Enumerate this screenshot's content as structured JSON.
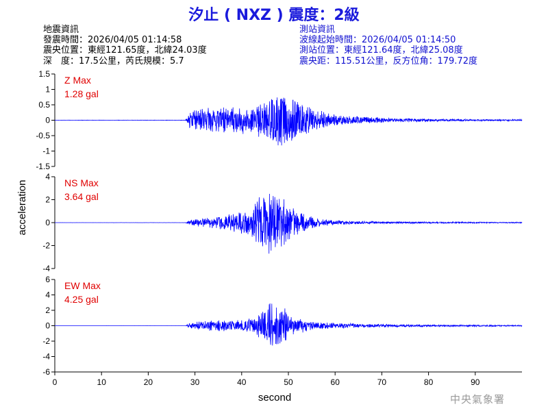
{
  "title": "汐止 ( NXZ ) 震度：2級",
  "quake_info": {
    "heading": "地震資訊",
    "origin_time": "發震時間：2026/04/05 01:14:58",
    "epicenter": "震央位置：東經121.65度，北緯24.03度",
    "depth_magnitude": "深　度：17.5公里，芮氏規模：5.7"
  },
  "station_info": {
    "heading": "測站資訊",
    "wave_start": "波線起始時間：2026/04/05 01:14:50",
    "station_location": "測站位置：東經121.64度，北緯25.08度",
    "distance_azimuth": "震央距：115.51公里，反方位角：179.72度"
  },
  "credit": "中央氣象署",
  "chart_data": {
    "type": "line",
    "xlabel": "second",
    "ylabel": "acceleration",
    "xlim": [
      0,
      100
    ],
    "xticks": [
      0,
      10,
      20,
      30,
      40,
      50,
      60,
      70,
      80,
      90
    ],
    "line_color": "#0000ff",
    "label_color": "#e00000",
    "panels": [
      {
        "component": "Z",
        "max_label": "Z Max",
        "max_value": "1.28 gal",
        "peak": 1.28,
        "ylim": [
          -1.5,
          1.5
        ],
        "yticks": [
          1.5,
          1,
          0.5,
          0,
          -0.5,
          -1,
          -1.5
        ],
        "ytick_labels": [
          "1.5",
          "1",
          "0.5",
          "0",
          "-0.5",
          "-1",
          "-1.5"
        ],
        "envelope": [
          [
            0,
            0.004
          ],
          [
            28,
            0.006
          ],
          [
            29,
            0.33
          ],
          [
            31,
            0.4
          ],
          [
            35,
            0.44
          ],
          [
            41,
            0.47
          ],
          [
            45,
            0.6
          ],
          [
            48,
            0.9
          ],
          [
            50,
            0.9
          ],
          [
            52,
            0.58
          ],
          [
            56,
            0.35
          ],
          [
            60,
            0.2
          ],
          [
            66,
            0.12
          ],
          [
            72,
            0.07
          ],
          [
            80,
            0.045
          ],
          [
            90,
            0.03
          ],
          [
            100,
            0.025
          ]
        ]
      },
      {
        "component": "NS",
        "max_label": "NS Max",
        "max_value": "3.64 gal",
        "peak": 3.64,
        "ylim": [
          -4,
          4
        ],
        "yticks": [
          4,
          2,
          0,
          -2,
          -4
        ],
        "ytick_labels": [
          "4",
          "2",
          "0",
          "-2",
          "-4"
        ],
        "envelope": [
          [
            0,
            0.004
          ],
          [
            28,
            0.006
          ],
          [
            29,
            0.25
          ],
          [
            33,
            0.48
          ],
          [
            38,
            0.78
          ],
          [
            42,
            1.2
          ],
          [
            43,
            2.0
          ],
          [
            46,
            2.9
          ],
          [
            48,
            2.7
          ],
          [
            50,
            1.6
          ],
          [
            53,
            0.8
          ],
          [
            56,
            0.4
          ],
          [
            60,
            0.2
          ],
          [
            70,
            0.1
          ],
          [
            80,
            0.07
          ],
          [
            100,
            0.04
          ]
        ]
      },
      {
        "component": "EW",
        "max_label": "EW Max",
        "max_value": "4.25 gal",
        "peak": 4.25,
        "ylim": [
          -6,
          6
        ],
        "yticks": [
          6,
          4,
          2,
          0,
          -2,
          -4,
          -6
        ],
        "ytick_labels": [
          "6",
          "4",
          "2",
          "0",
          "-2",
          "-4",
          "-6"
        ],
        "envelope": [
          [
            0,
            0.004
          ],
          [
            28,
            0.006
          ],
          [
            29,
            0.4
          ],
          [
            33,
            0.7
          ],
          [
            40,
            0.8
          ],
          [
            43,
            1.1
          ],
          [
            45,
            2.5
          ],
          [
            47,
            3.5
          ],
          [
            49,
            2.4
          ],
          [
            51,
            1.3
          ],
          [
            55,
            0.55
          ],
          [
            60,
            0.35
          ],
          [
            70,
            0.2
          ],
          [
            80,
            0.13
          ],
          [
            100,
            0.08
          ]
        ]
      }
    ]
  }
}
